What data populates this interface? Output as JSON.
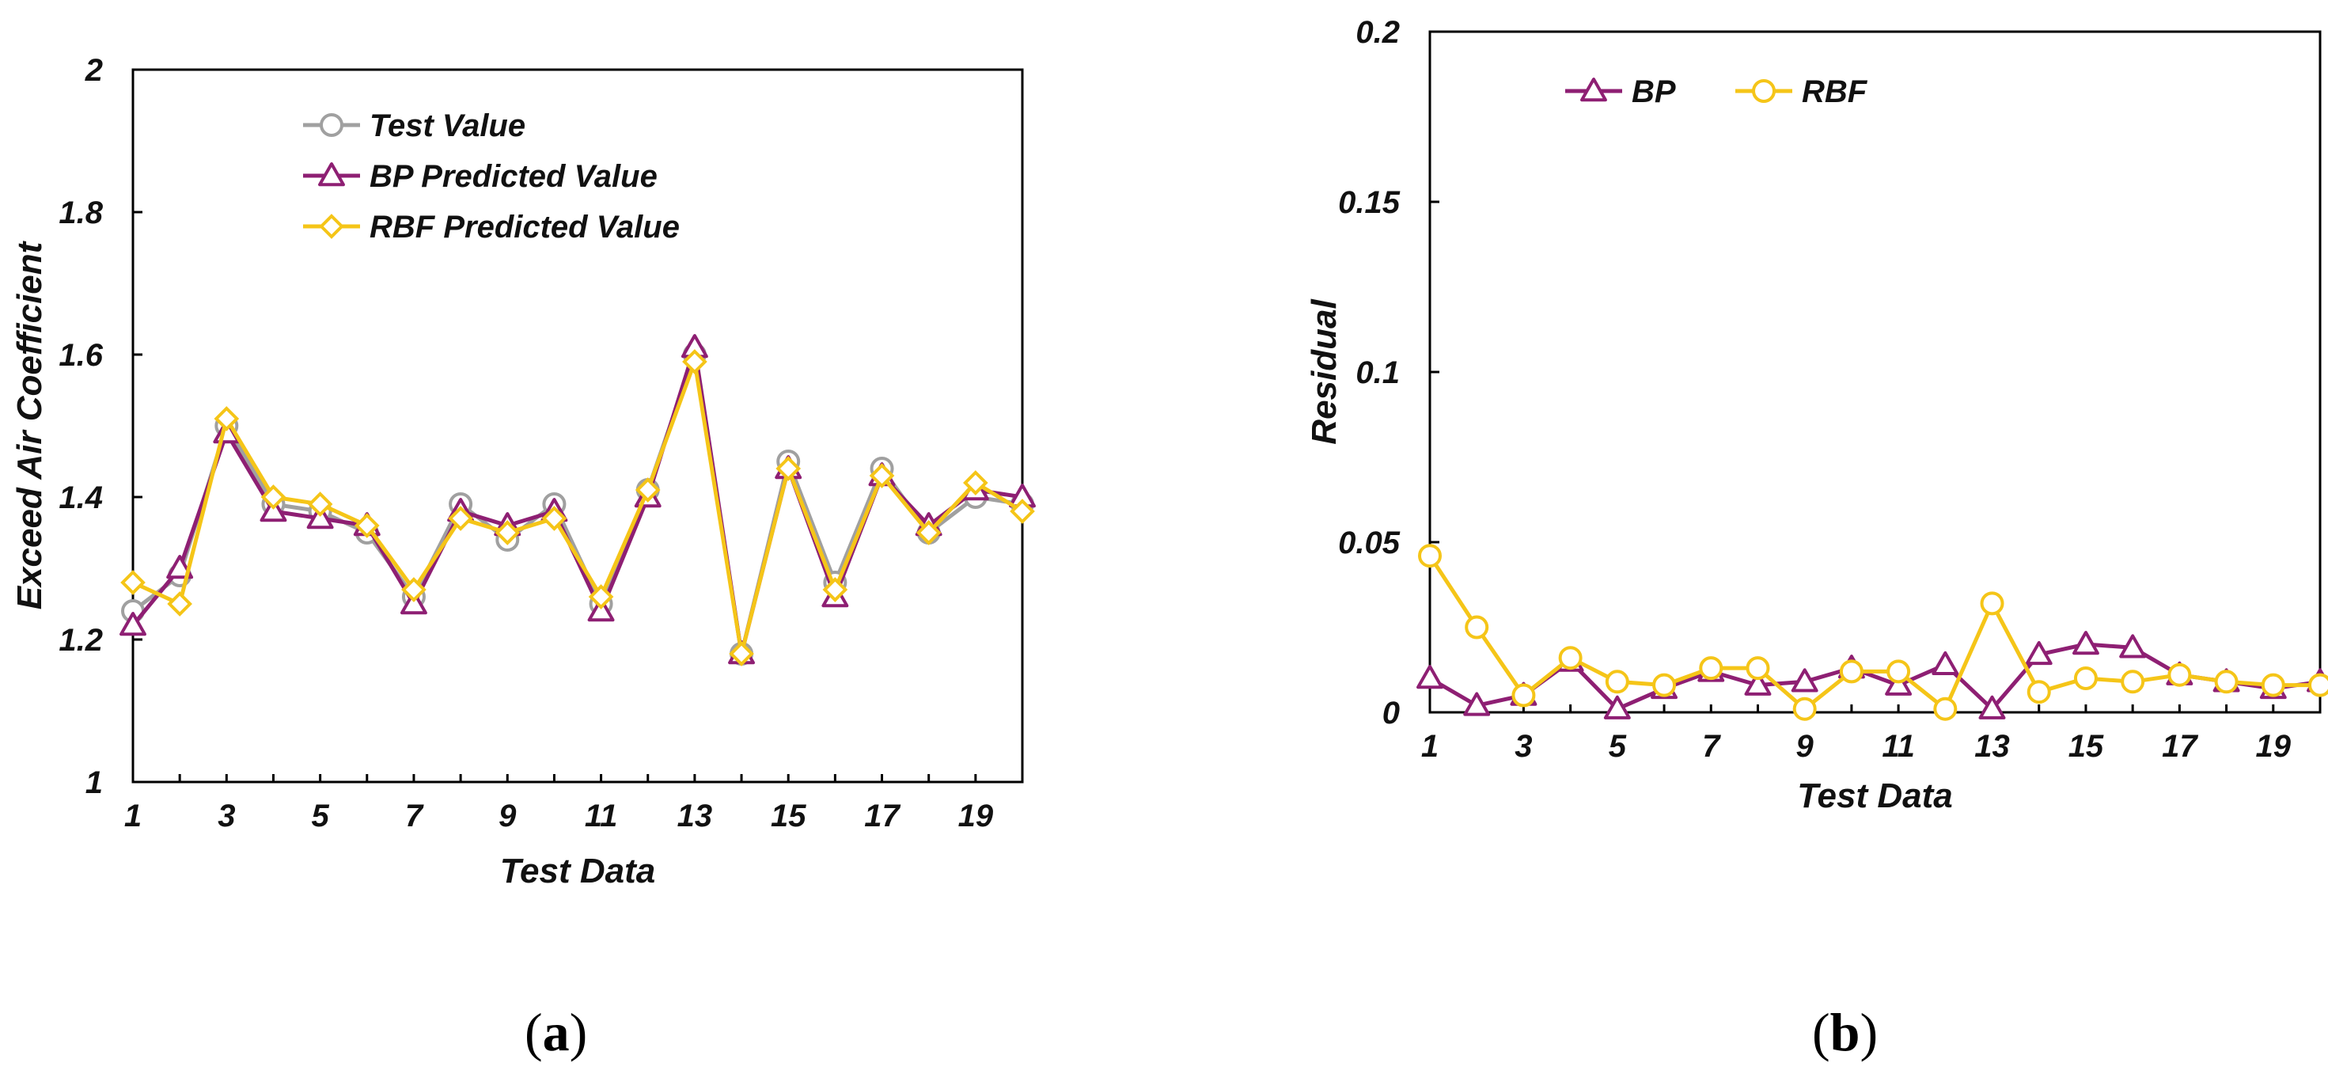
{
  "colors": {
    "test": "#a0a0a0",
    "bp": "#8e1f73",
    "rbf": "#f5c518",
    "axis": "#000000"
  },
  "chart_data": [
    {
      "type": "line",
      "panel_label": "a",
      "title": "",
      "xlabel": "Test Data",
      "ylabel": "Exceed Air Coefficient",
      "xlim": [
        1,
        20
      ],
      "ylim": [
        1,
        2
      ],
      "xticks": [
        1,
        3,
        5,
        7,
        9,
        11,
        13,
        15,
        17,
        19
      ],
      "yticks": [
        1,
        1.2,
        1.4,
        1.6,
        1.8,
        2
      ],
      "grid": false,
      "legend_position": "top-left",
      "x": [
        1,
        2,
        3,
        4,
        5,
        6,
        7,
        8,
        9,
        10,
        11,
        12,
        13,
        14,
        15,
        16,
        17,
        18,
        19,
        20
      ],
      "series": [
        {
          "name": "Test Value",
          "marker": "circle",
          "color": "#a0a0a0",
          "values": [
            1.24,
            1.29,
            1.5,
            1.39,
            1.38,
            1.35,
            1.26,
            1.39,
            1.34,
            1.39,
            1.25,
            1.41,
            1.6,
            1.18,
            1.45,
            1.28,
            1.44,
            1.35,
            1.4,
            1.39
          ]
        },
        {
          "name": "BP Predicted Value",
          "marker": "triangle",
          "color": "#8e1f73",
          "values": [
            1.22,
            1.3,
            1.49,
            1.38,
            1.37,
            1.36,
            1.25,
            1.38,
            1.36,
            1.38,
            1.24,
            1.4,
            1.61,
            1.18,
            1.44,
            1.26,
            1.43,
            1.36,
            1.41,
            1.4
          ]
        },
        {
          "name": "RBF Predicted Value",
          "marker": "diamond",
          "color": "#f5c518",
          "values": [
            1.28,
            1.25,
            1.51,
            1.4,
            1.39,
            1.36,
            1.27,
            1.37,
            1.35,
            1.37,
            1.26,
            1.41,
            1.59,
            1.18,
            1.44,
            1.27,
            1.43,
            1.35,
            1.42,
            1.38
          ]
        }
      ]
    },
    {
      "type": "line",
      "panel_label": "b",
      "title": "",
      "xlabel": "Test Data",
      "ylabel": "Residual",
      "xlim": [
        1,
        20
      ],
      "ylim": [
        0,
        0.2
      ],
      "xticks": [
        1,
        3,
        5,
        7,
        9,
        11,
        13,
        15,
        17,
        19
      ],
      "yticks": [
        0,
        0.05,
        0.1,
        0.15,
        0.2
      ],
      "grid": false,
      "legend_position": "top-left",
      "x": [
        1,
        2,
        3,
        4,
        5,
        6,
        7,
        8,
        9,
        10,
        11,
        12,
        13,
        14,
        15,
        16,
        17,
        18,
        19,
        20
      ],
      "series": [
        {
          "name": "BP",
          "marker": "triangle",
          "color": "#8e1f73",
          "values": [
            0.01,
            0.002,
            0.005,
            0.015,
            0.001,
            0.007,
            0.012,
            0.008,
            0.009,
            0.013,
            0.008,
            0.014,
            0.001,
            0.017,
            0.02,
            0.019,
            0.011,
            0.009,
            0.007,
            0.009
          ]
        },
        {
          "name": "RBF",
          "marker": "circle",
          "color": "#f5c518",
          "values": [
            0.046,
            0.025,
            0.005,
            0.016,
            0.009,
            0.008,
            0.013,
            0.013,
            0.001,
            0.012,
            0.012,
            0.001,
            0.032,
            0.006,
            0.01,
            0.009,
            0.011,
            0.009,
            0.008,
            0.008
          ]
        }
      ]
    }
  ]
}
